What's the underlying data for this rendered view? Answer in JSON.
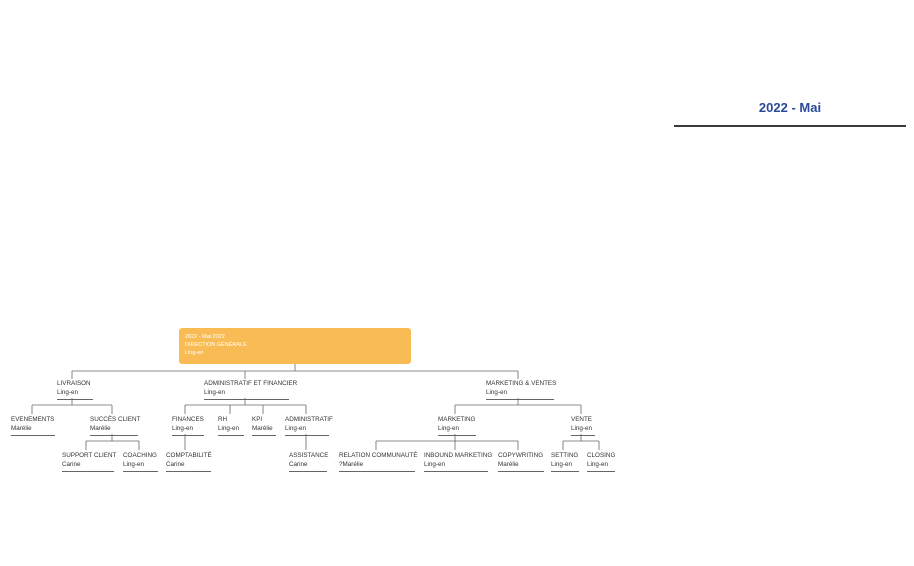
{
  "header": {
    "title": "2022 - Mai"
  },
  "root": {
    "line1": "2022 - Mai 2022",
    "line2": "DIRECTION GÉNÉRALE",
    "line3": "Ling-en"
  },
  "nodes": {
    "livraison": {
      "label": "LIVRAISON",
      "person": "Ling-en"
    },
    "admin_fin": {
      "label": "ADMINISTRATIF ET FINANCIER",
      "person": "Ling-en"
    },
    "mkt_ventes": {
      "label": "MARKETING & VENTES",
      "person": "Ling-en"
    },
    "evenements": {
      "label": "EVENEMENTS",
      "person": "Marélie"
    },
    "succes_client": {
      "label": "SUCCÈS CLIENT",
      "person": "Marélie"
    },
    "support_client": {
      "label": "SUPPORT CLIENT",
      "person": "Carine"
    },
    "coaching": {
      "label": "COACHING",
      "person": "Ling-en"
    },
    "finances": {
      "label": "FINANCES",
      "person": "Ling-en"
    },
    "rh": {
      "label": "RH",
      "person": "Ling-en"
    },
    "kpi": {
      "label": "KPI",
      "person": "Marélie"
    },
    "administratif": {
      "label": "ADMINISTRATIF",
      "person": "Ling-en"
    },
    "comptabilite": {
      "label": "COMPTABILITÉ",
      "person": "Carine"
    },
    "assistance": {
      "label": "ASSISTANCE",
      "person": "Carine"
    },
    "marketing": {
      "label": "MARKETING",
      "person": "Ling-en"
    },
    "vente": {
      "label": "VENTE",
      "person": "Ling-en"
    },
    "relation": {
      "label": "RELATION COMMUNAUTÉ",
      "person": "?Marélie"
    },
    "inbound": {
      "label": "INBOUND MARKETING",
      "person": "Ling-en"
    },
    "copywriting": {
      "label": "COPYWRITING",
      "person": "Marélie"
    },
    "setting": {
      "label": "SETTING",
      "person": "Ling-en"
    },
    "closing": {
      "label": "CLOSING",
      "person": "Ling-en"
    }
  }
}
